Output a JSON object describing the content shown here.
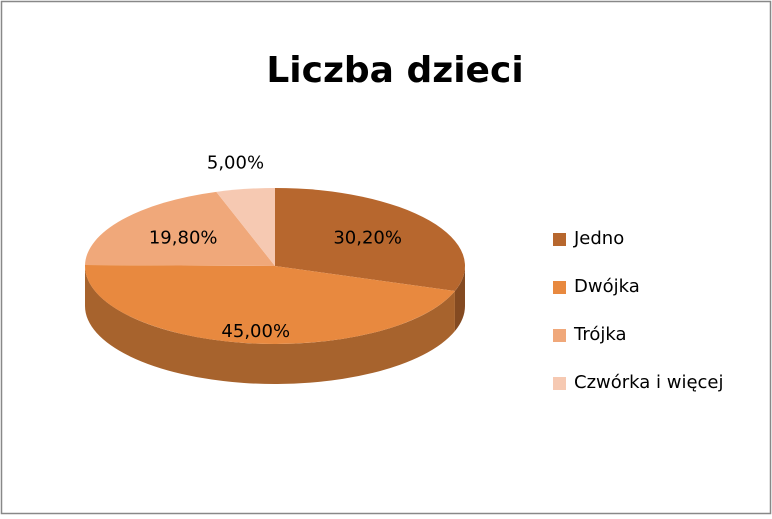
{
  "chart_data": {
    "type": "pie",
    "title": "Liczba dzieci",
    "categories": [
      "Jedno",
      "Dwójka",
      "Trójka",
      "Czwórka i więcej"
    ],
    "values": [
      30.2,
      45,
      19.8,
      5
    ],
    "value_labels": [
      "30,20%",
      "45,00%",
      "19,80%",
      "5,00%"
    ],
    "colors": [
      "#b7672e",
      "#e8893f",
      "#f0a87a",
      "#f6c9b2"
    ],
    "legend": "right"
  }
}
